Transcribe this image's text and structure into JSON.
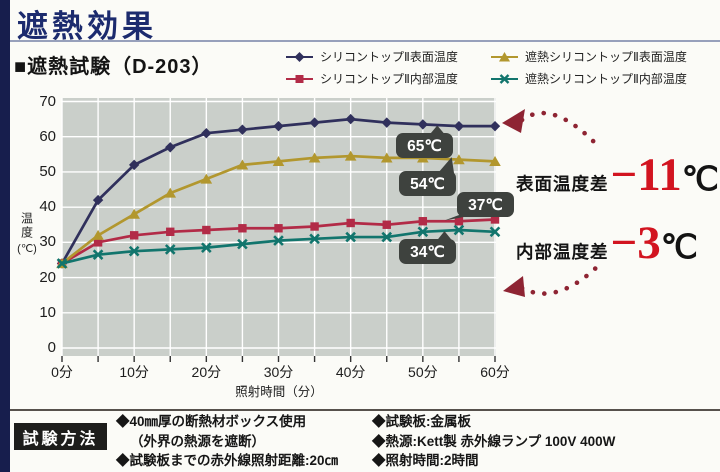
{
  "page": {
    "title": "遮熱効果",
    "subtitle": "■遮熱試験（D-203）"
  },
  "chart_data": {
    "type": "line",
    "x_minutes": [
      0,
      5,
      10,
      15,
      20,
      25,
      30,
      35,
      40,
      45,
      50,
      55,
      60
    ],
    "x_tick_labels": [
      "0分",
      "10分",
      "20分",
      "30分",
      "40分",
      "50分",
      "60分"
    ],
    "x_tick_minutes": [
      0,
      10,
      20,
      30,
      40,
      50,
      60
    ],
    "xlabel": "照射時間（分）",
    "ylabel": "温度",
    "ylabel_unit": "(℃)",
    "ylim": [
      0,
      70
    ],
    "y_ticks": [
      0,
      10,
      20,
      30,
      40,
      50,
      60,
      70
    ],
    "grid": "white gridlines every 5 min vertical and 10°C horizontal on gray plot",
    "legend_position": "top-right, two columns",
    "plot_bg_color": "#cacfca",
    "grid_color": "#ffffff",
    "series": [
      {
        "name": "シリコントップⅡ表面温度",
        "marker": "diamond",
        "color": "#30305c",
        "values": [
          24,
          42,
          52,
          57,
          61,
          62,
          63,
          64,
          65,
          64,
          63.5,
          63,
          63
        ]
      },
      {
        "name": "シリコントップⅡ内部温度",
        "marker": "square",
        "color": "#b22b47",
        "values": [
          24,
          30,
          32,
          33,
          33.5,
          34,
          34,
          34.5,
          35.5,
          35,
          36,
          36,
          36.5
        ]
      },
      {
        "name": "遮熱シリコントップⅡ表面温度",
        "marker": "triangle",
        "color": "#b2972e",
        "values": [
          24,
          32,
          38,
          44,
          48,
          52,
          53,
          54,
          54.5,
          54,
          54,
          53.5,
          53
        ]
      },
      {
        "name": "遮熱シリコントップⅡ内部温度",
        "marker": "x",
        "color": "#12756d",
        "values": [
          24,
          26.5,
          27.5,
          28,
          28.5,
          29.5,
          30.5,
          31,
          31.5,
          31.5,
          33,
          33.5,
          33
        ]
      }
    ],
    "callouts": [
      {
        "text": "65℃",
        "anchor_min": 52,
        "anchor_temp": 63.2
      },
      {
        "text": "54℃",
        "anchor_min": 54,
        "anchor_temp": 54.2
      },
      {
        "text": "37℃",
        "anchor_min": 53,
        "anchor_temp": 36.2
      },
      {
        "text": "34℃",
        "anchor_min": 53,
        "anchor_temp": 33.2
      }
    ]
  },
  "annotations": {
    "surface": {
      "label": "表面温度差",
      "value": "−11",
      "unit": "℃"
    },
    "internal": {
      "label": "内部温度差",
      "value": "−3",
      "unit": "℃"
    },
    "arrow_color": "#8e2433"
  },
  "method": {
    "title": "試験方法",
    "left": [
      "◆40㎜厚の断熱材ボックス使用",
      "（外界の熱源を遮断）",
      "◆試験板までの赤外線照射距離:20㎝"
    ],
    "right": [
      "◆試験板:金属板",
      "◆熱源:Kett製 赤外線ランプ 100V 400W",
      "◆照射時間:2時間"
    ]
  }
}
